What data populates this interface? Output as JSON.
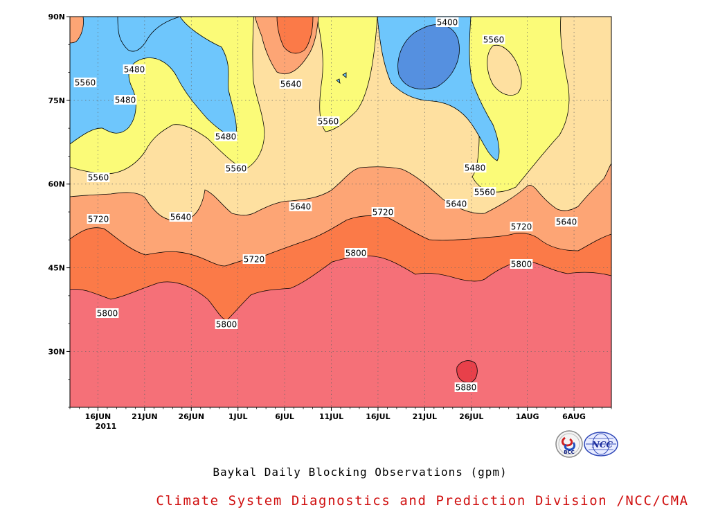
{
  "chart_data": {
    "type": "heatmap",
    "subtype": "filled-contour",
    "title": "Baykal Daily Blocking Observations (gpm)",
    "credit": "Climate System Diagnostics and Prediction Division /NCC/CMA",
    "logos": [
      "BCC",
      "NCC"
    ],
    "x_axis": {
      "type": "date",
      "range": [
        "2011-06-13",
        "2011-08-10"
      ],
      "tick_labels": [
        "16JUN",
        "21JUN",
        "26JUN",
        "1JUL",
        "6JUL",
        "11JUL",
        "16JUL",
        "21JUL",
        "26JUL",
        "1AUG",
        "6AUG"
      ],
      "year_label": "2011"
    },
    "y_axis": {
      "range": [
        20,
        90
      ],
      "units": "degrees latitude",
      "tick_labels": [
        "30N",
        "45N",
        "60N",
        "75N",
        "90N"
      ],
      "tick_values": [
        30,
        45,
        60,
        75,
        90
      ]
    },
    "grid": true,
    "contour_levels": [
      5400,
      5480,
      5560,
      5640,
      5720,
      5800,
      5880
    ],
    "fill_colors": {
      "below_5400": "#5590e0",
      "5400_5480": "#6ec6fc",
      "5480_5560": "#fbfb78",
      "5560_5640": "#fee0a0",
      "5640_5720": "#fda575",
      "5720_5800": "#fb7a48",
      "5800_5880": "#f57078",
      "above_5880": "#e8404a"
    },
    "contour_labels": [
      "5400",
      "5480",
      "5480",
      "5480",
      "5480",
      "5480",
      "5560",
      "5560",
      "5560",
      "5560",
      "5560",
      "5640",
      "5640",
      "5640",
      "5640",
      "5640",
      "5720",
      "5720",
      "5720",
      "5720",
      "5800",
      "5800",
      "5800",
      "5800",
      "5800",
      "5880"
    ]
  }
}
